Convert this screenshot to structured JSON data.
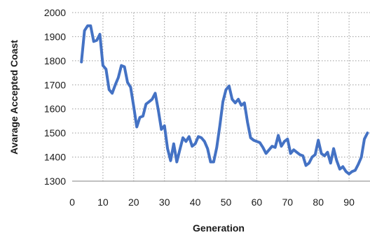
{
  "chart_data": {
    "type": "line",
    "xlabel": "Generation",
    "ylabel": "Avarage Accepted Coast",
    "xlim": [
      0,
      96
    ],
    "ylim": [
      1300,
      2000
    ],
    "x_ticks": [
      0,
      10,
      20,
      30,
      40,
      50,
      60,
      70,
      80,
      90
    ],
    "y_ticks": [
      1300,
      1400,
      1500,
      1600,
      1700,
      1800,
      1900,
      2000
    ],
    "grid": true,
    "series": [
      {
        "color": "#4472c4",
        "x": [
          3,
          4,
          5,
          6,
          7,
          8,
          9,
          10,
          11,
          12,
          13,
          14,
          15,
          16,
          17,
          18,
          19,
          20,
          21,
          22,
          23,
          24,
          25,
          26,
          27,
          28,
          29,
          30,
          31,
          32,
          33,
          34,
          35,
          36,
          37,
          38,
          39,
          40,
          41,
          42,
          43,
          44,
          45,
          46,
          47,
          48,
          49,
          50,
          51,
          52,
          53,
          54,
          55,
          56,
          57,
          58,
          59,
          60,
          61,
          62,
          63,
          64,
          65,
          66,
          67,
          68,
          69,
          70,
          71,
          72,
          73,
          74,
          75,
          76,
          77,
          78,
          79,
          80,
          81,
          82,
          83,
          84,
          85,
          86,
          87,
          88,
          89,
          90,
          91,
          92,
          93,
          94,
          95,
          96
        ],
        "values": [
          1795,
          1925,
          1945,
          1945,
          1880,
          1885,
          1910,
          1780,
          1765,
          1680,
          1665,
          1700,
          1730,
          1780,
          1775,
          1710,
          1690,
          1610,
          1525,
          1565,
          1570,
          1620,
          1630,
          1640,
          1665,
          1595,
          1515,
          1530,
          1435,
          1385,
          1455,
          1380,
          1430,
          1480,
          1465,
          1485,
          1445,
          1455,
          1485,
          1480,
          1465,
          1435,
          1380,
          1380,
          1440,
          1530,
          1630,
          1680,
          1695,
          1640,
          1625,
          1640,
          1615,
          1625,
          1545,
          1480,
          1470,
          1465,
          1460,
          1440,
          1415,
          1430,
          1445,
          1440,
          1490,
          1445,
          1465,
          1475,
          1415,
          1430,
          1420,
          1410,
          1405,
          1365,
          1375,
          1400,
          1410,
          1470,
          1415,
          1405,
          1420,
          1375,
          1435,
          1385,
          1350,
          1360,
          1340,
          1330,
          1340,
          1345,
          1370,
          1400,
          1475,
          1500
        ]
      }
    ]
  }
}
